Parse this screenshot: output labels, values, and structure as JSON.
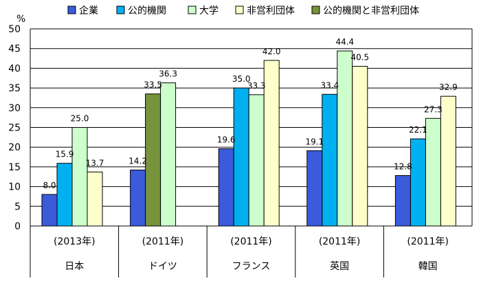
{
  "chart_data": {
    "type": "bar",
    "unit_label": "%",
    "ylim": [
      0,
      50
    ],
    "yticks": [
      0,
      5,
      10,
      15,
      20,
      25,
      30,
      35,
      40,
      45,
      50
    ],
    "grid": true,
    "legend_position": "top",
    "categories": [
      {
        "year": "(2013年)",
        "country": "日本"
      },
      {
        "year": "(2011年)",
        "country": "ドイツ"
      },
      {
        "year": "(2011年)",
        "country": "フランス"
      },
      {
        "year": "(2011年)",
        "country": "英国"
      },
      {
        "year": "(2011年)",
        "country": "韓国"
      }
    ],
    "series": [
      {
        "name": "企業",
        "color": "#3b5bdb",
        "values": [
          8.0,
          14.2,
          19.6,
          19.1,
          12.8
        ]
      },
      {
        "name": "公的機関",
        "color": "#00b0f0",
        "values": [
          15.9,
          null,
          35.0,
          33.4,
          22.1
        ]
      },
      {
        "name": "大学",
        "color": "#ccffcc",
        "values": [
          25.0,
          36.3,
          33.3,
          44.4,
          27.3
        ]
      },
      {
        "name": "非営利団体",
        "color": "#ffffcc",
        "values": [
          13.7,
          null,
          42.0,
          40.5,
          32.9
        ]
      },
      {
        "name": "公的機関と非営利団体",
        "color": "#77933c",
        "values": [
          null,
          33.5,
          null,
          null,
          null
        ]
      }
    ],
    "bar_order": [
      [
        "企業",
        "公的機関",
        "大学",
        "非営利団体"
      ],
      [
        "企業",
        "公的機関と非営利団体",
        "大学"
      ],
      [
        "企業",
        "公的機関",
        "大学",
        "非営利団体"
      ],
      [
        "企業",
        "公的機関",
        "大学",
        "非営利団体"
      ],
      [
        "企業",
        "公的機関",
        "大学",
        "非営利団体"
      ]
    ]
  }
}
